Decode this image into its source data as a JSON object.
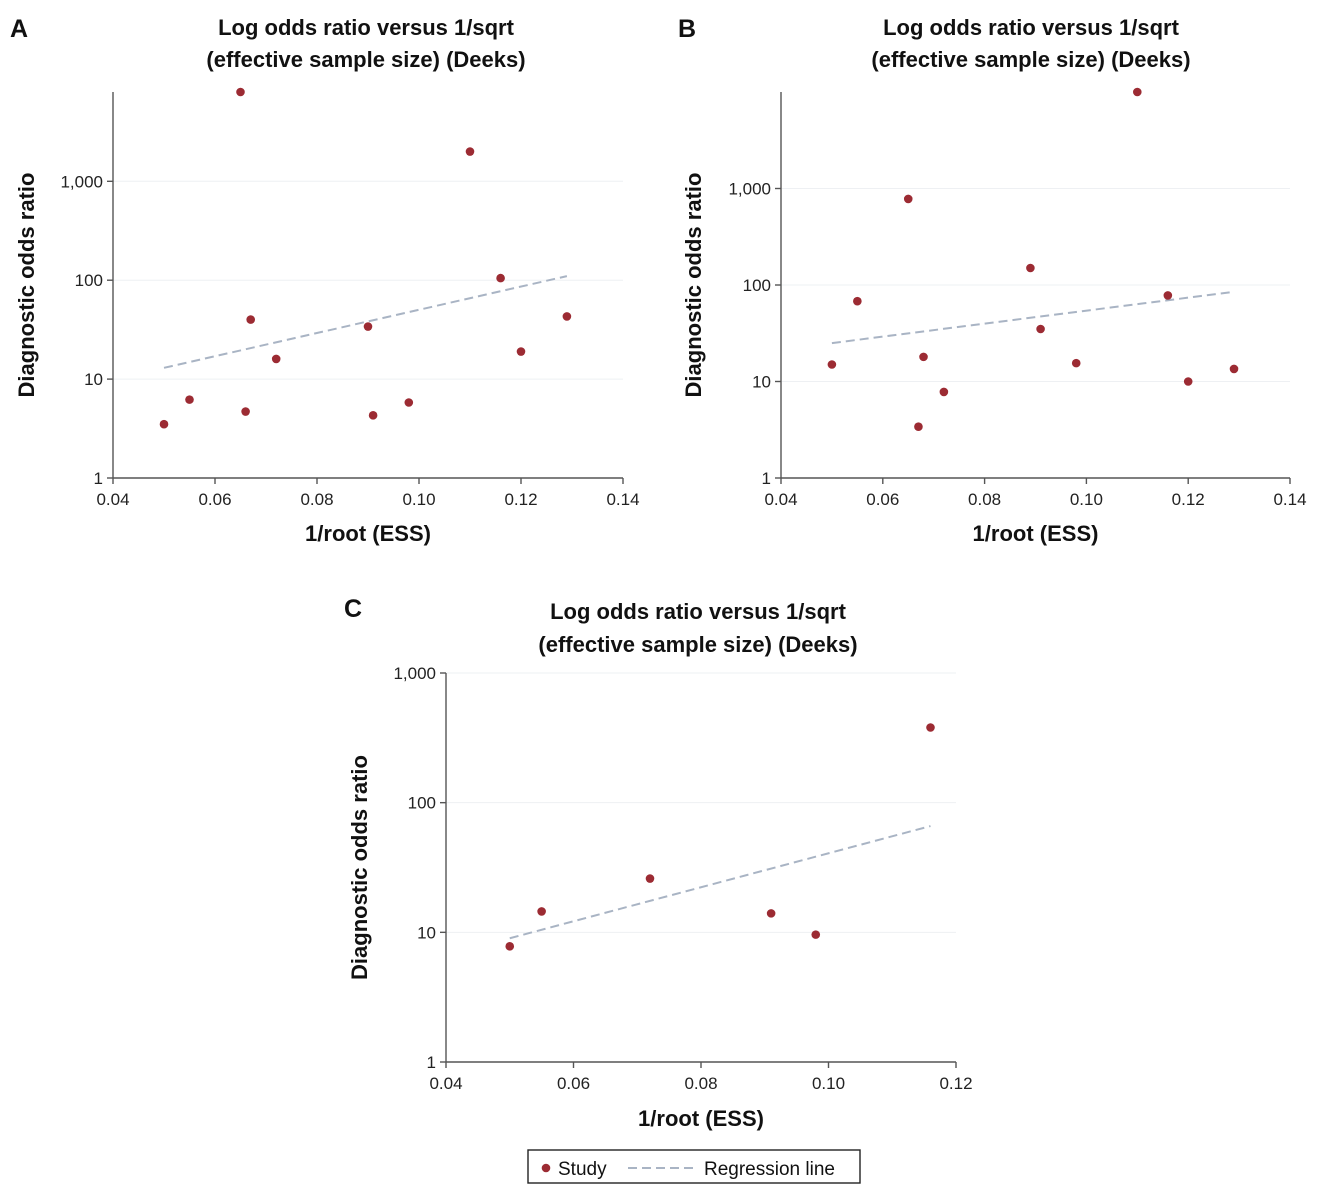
{
  "colors": {
    "point": "#9c2b33",
    "regression": "#a9b4c4",
    "axis": "#555555"
  },
  "legend": {
    "study_label": "Study",
    "regression_label": "Regression line"
  },
  "chart_data": [
    {
      "panel": "A",
      "type": "scatter",
      "title": [
        "Log odds ratio versus 1/sqrt",
        "(effective sample size) (Deeks)"
      ],
      "xlabel": "1/root (ESS)",
      "ylabel": "Diagnostic odds ratio",
      "y_scale": "log",
      "xlim": [
        0.04,
        0.14
      ],
      "ylim": [
        1,
        8000
      ],
      "x_ticks": [
        0.04,
        0.06,
        0.08,
        0.1,
        0.12,
        0.14
      ],
      "x_tick_labels": [
        "0.04",
        "0.06",
        "0.08",
        "0.10",
        "0.12",
        "0.14"
      ],
      "y_ticks": [
        1,
        10,
        100,
        1000
      ],
      "y_tick_labels": [
        "1",
        "10",
        "100",
        "1,000"
      ],
      "points": [
        {
          "x": 0.05,
          "y": 3.5
        },
        {
          "x": 0.055,
          "y": 6.2
        },
        {
          "x": 0.065,
          "y": 8000
        },
        {
          "x": 0.066,
          "y": 4.7
        },
        {
          "x": 0.067,
          "y": 40
        },
        {
          "x": 0.072,
          "y": 16
        },
        {
          "x": 0.09,
          "y": 34
        },
        {
          "x": 0.091,
          "y": 4.3
        },
        {
          "x": 0.098,
          "y": 5.8
        },
        {
          "x": 0.11,
          "y": 2000
        },
        {
          "x": 0.116,
          "y": 105
        },
        {
          "x": 0.12,
          "y": 19
        },
        {
          "x": 0.129,
          "y": 43
        }
      ],
      "regression": [
        {
          "x": 0.05,
          "y": 13
        },
        {
          "x": 0.129,
          "y": 110
        }
      ]
    },
    {
      "panel": "B",
      "type": "scatter",
      "title": [
        "Log odds ratio versus 1/sqrt",
        "(effective sample size) (Deeks)"
      ],
      "xlabel": "1/root (ESS)",
      "ylabel": "Diagnostic odds ratio",
      "y_scale": "log",
      "xlim": [
        0.04,
        0.14
      ],
      "ylim": [
        1,
        10000
      ],
      "x_ticks": [
        0.04,
        0.06,
        0.08,
        0.1,
        0.12,
        0.14
      ],
      "x_tick_labels": [
        "0.04",
        "0.06",
        "0.08",
        "0.10",
        "0.12",
        "0.14"
      ],
      "y_ticks": [
        1,
        10,
        100,
        1000
      ],
      "y_tick_labels": [
        "1",
        "10",
        "100",
        "1,000"
      ],
      "points": [
        {
          "x": 0.05,
          "y": 15
        },
        {
          "x": 0.055,
          "y": 68
        },
        {
          "x": 0.065,
          "y": 780
        },
        {
          "x": 0.067,
          "y": 3.4
        },
        {
          "x": 0.068,
          "y": 18
        },
        {
          "x": 0.072,
          "y": 7.8
        },
        {
          "x": 0.089,
          "y": 150
        },
        {
          "x": 0.091,
          "y": 35
        },
        {
          "x": 0.098,
          "y": 15.5
        },
        {
          "x": 0.11,
          "y": 10000
        },
        {
          "x": 0.116,
          "y": 78
        },
        {
          "x": 0.12,
          "y": 10
        },
        {
          "x": 0.129,
          "y": 13.5
        }
      ],
      "regression": [
        {
          "x": 0.05,
          "y": 25
        },
        {
          "x": 0.129,
          "y": 85
        }
      ]
    },
    {
      "panel": "C",
      "type": "scatter",
      "title": [
        "Log odds ratio versus 1/sqrt",
        "(effective sample size) (Deeks)"
      ],
      "xlabel": "1/root (ESS)",
      "ylabel": "Diagnostic odds ratio",
      "y_scale": "log",
      "xlim": [
        0.04,
        0.12
      ],
      "ylim": [
        1,
        1000
      ],
      "x_ticks": [
        0.04,
        0.06,
        0.08,
        0.1,
        0.12
      ],
      "x_tick_labels": [
        "0.04",
        "0.06",
        "0.08",
        "0.10",
        "0.12"
      ],
      "y_ticks": [
        1,
        10,
        100,
        1000
      ],
      "y_tick_labels": [
        "1",
        "10",
        "100",
        "1,000"
      ],
      "points": [
        {
          "x": 0.05,
          "y": 7.8
        },
        {
          "x": 0.055,
          "y": 14.5
        },
        {
          "x": 0.072,
          "y": 26
        },
        {
          "x": 0.091,
          "y": 14
        },
        {
          "x": 0.098,
          "y": 9.6
        },
        {
          "x": 0.116,
          "y": 380
        }
      ],
      "regression": [
        {
          "x": 0.05,
          "y": 9
        },
        {
          "x": 0.116,
          "y": 66
        }
      ]
    }
  ]
}
